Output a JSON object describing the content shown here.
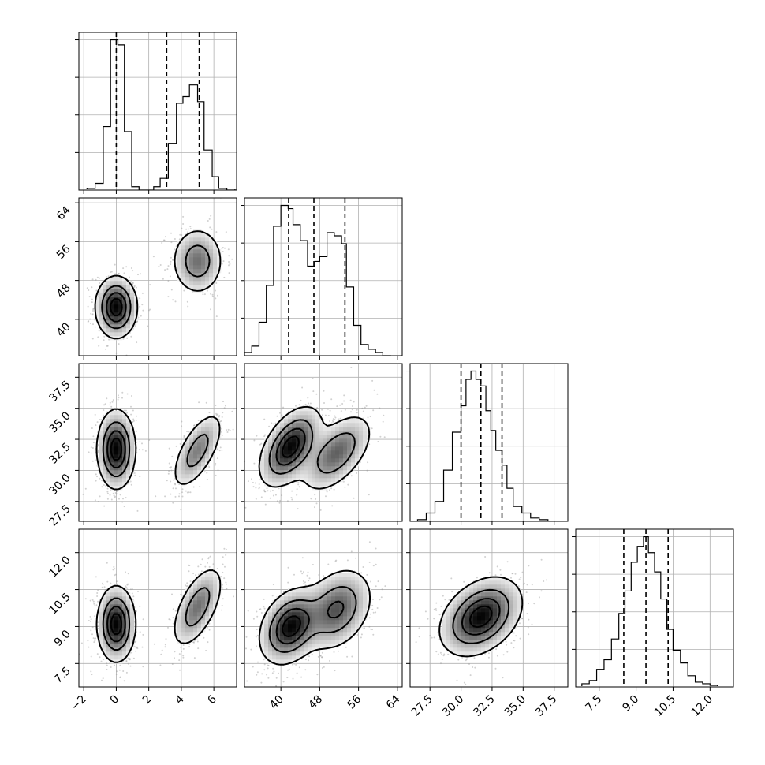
{
  "chart_data": {
    "type": "corner",
    "n_params": 4,
    "grid": true,
    "params": [
      {
        "index": 0,
        "range": [
          -2.3,
          7.4
        ],
        "ticks": [
          -2,
          0,
          2,
          4,
          6
        ],
        "tick_labels": [
          "−2",
          "0",
          "2",
          "4",
          "6"
        ],
        "quantiles": [
          0.0,
          3.1,
          5.1
        ],
        "hist": {
          "edges": [
            -1.8,
            -1.3,
            -0.8,
            -0.35,
            0.1,
            0.5,
            0.95,
            1.4,
            1.8,
            2.3,
            2.7,
            3.2,
            3.7,
            4.1,
            4.5,
            5.0,
            5.4,
            5.9,
            6.3,
            6.8,
            7.3
          ],
          "counts": [
            0.01,
            0.04,
            0.38,
            0.9,
            0.87,
            0.35,
            0.02,
            0.0,
            0.0,
            0.02,
            0.07,
            0.28,
            0.52,
            0.56,
            0.63,
            0.53,
            0.24,
            0.08,
            0.01,
            0.0
          ]
        }
      },
      {
        "index": 1,
        "range": [
          32.5,
          65.0
        ],
        "ticks": [
          40,
          48,
          56,
          64
        ],
        "tick_labels": [
          "40",
          "48",
          "56",
          "64"
        ],
        "quantiles": [
          41.6,
          46.8,
          53.2
        ],
        "hist": {
          "edges": [
            32.5,
            34.0,
            35.5,
            37.0,
            38.5,
            40.0,
            41.5,
            42.5,
            44.0,
            45.5,
            47.0,
            48.0,
            49.5,
            51.0,
            52.5,
            53.5,
            55.0,
            56.5,
            58.0,
            59.5,
            61.0,
            62.5
          ],
          "counts": [
            0.02,
            0.06,
            0.21,
            0.44,
            0.81,
            0.94,
            0.92,
            0.82,
            0.72,
            0.56,
            0.59,
            0.62,
            0.77,
            0.75,
            0.7,
            0.43,
            0.19,
            0.07,
            0.04,
            0.02,
            0.0
          ]
        }
      },
      {
        "index": 2,
        "range": [
          25.9,
          38.6
        ],
        "ticks": [
          27.5,
          30.0,
          32.5,
          35.0,
          37.5
        ],
        "tick_labels": [
          "27.5",
          "30.0",
          "32.5",
          "35.0",
          "37.5"
        ],
        "quantiles": [
          30.0,
          31.6,
          33.3
        ],
        "hist": {
          "edges": [
            26.5,
            27.2,
            27.9,
            28.6,
            29.3,
            30.0,
            30.4,
            30.8,
            31.2,
            31.6,
            32.0,
            32.4,
            32.8,
            33.3,
            33.7,
            34.2,
            34.9,
            35.6,
            36.3,
            37.0,
            37.7
          ],
          "counts": [
            0.01,
            0.05,
            0.12,
            0.31,
            0.54,
            0.7,
            0.86,
            0.91,
            0.86,
            0.82,
            0.67,
            0.55,
            0.43,
            0.34,
            0.2,
            0.09,
            0.05,
            0.02,
            0.01,
            0.0
          ]
        }
      },
      {
        "index": 3,
        "range": [
          6.55,
          12.95
        ],
        "ticks": [
          7.5,
          9.0,
          10.5,
          12.0
        ],
        "tick_labels": [
          "7.5",
          "9.0",
          "10.5",
          "12.0"
        ],
        "quantiles": [
          8.5,
          9.4,
          10.3
        ],
        "hist": {
          "edges": [
            6.8,
            7.1,
            7.4,
            7.7,
            8.0,
            8.3,
            8.55,
            8.8,
            9.05,
            9.3,
            9.5,
            9.75,
            10.0,
            10.25,
            10.5,
            10.8,
            11.1,
            11.4,
            11.7,
            12.0,
            12.3
          ],
          "counts": [
            0.02,
            0.04,
            0.11,
            0.17,
            0.3,
            0.46,
            0.6,
            0.78,
            0.88,
            0.94,
            0.84,
            0.72,
            0.55,
            0.36,
            0.23,
            0.15,
            0.07,
            0.03,
            0.02,
            0.01
          ]
        }
      }
    ],
    "pairs": [
      {
        "row": 1,
        "col": 0,
        "modes": [
          {
            "center": [
              0.0,
              42.5
            ],
            "sd": [
              0.6,
              3.0
            ],
            "rho": 0.0,
            "weight": 1.0
          },
          {
            "center": [
              5.0,
              52.0
            ],
            "sd": [
              0.75,
              3.3
            ],
            "rho": 0.0,
            "weight": 0.55
          }
        ]
      },
      {
        "row": 2,
        "col": 0,
        "modes": [
          {
            "center": [
              0.0,
              31.7
            ],
            "sd": [
              0.55,
              1.5
            ],
            "rho": 0.0,
            "weight": 1.0
          },
          {
            "center": [
              5.0,
              31.6
            ],
            "sd": [
              0.75,
              1.5
            ],
            "rho": 0.65,
            "weight": 0.5
          }
        ]
      },
      {
        "row": 2,
        "col": 1,
        "modes": [
          {
            "center": [
              42.0,
              31.9
            ],
            "sd": [
              3.0,
              1.5
            ],
            "rho": 0.5,
            "weight": 1.0
          },
          {
            "center": [
              51.5,
              31.4
            ],
            "sd": [
              3.5,
              1.5
            ],
            "rho": 0.55,
            "weight": 0.62
          }
        ]
      },
      {
        "row": 3,
        "col": 0,
        "modes": [
          {
            "center": [
              0.0,
              9.1
            ],
            "sd": [
              0.55,
              0.72
            ],
            "rho": 0.0,
            "weight": 1.0
          },
          {
            "center": [
              5.0,
              9.8
            ],
            "sd": [
              0.75,
              0.8
            ],
            "rho": 0.6,
            "weight": 0.55
          }
        ]
      },
      {
        "row": 3,
        "col": 1,
        "modes": [
          {
            "center": [
              42.0,
              9.0
            ],
            "sd": [
              3.0,
              0.72
            ],
            "rho": 0.3,
            "weight": 1.0
          },
          {
            "center": [
              51.5,
              9.7
            ],
            "sd": [
              3.5,
              0.8
            ],
            "rho": 0.3,
            "weight": 0.68
          }
        ]
      },
      {
        "row": 3,
        "col": 2,
        "modes": [
          {
            "center": [
              31.6,
              9.4
            ],
            "sd": [
              1.55,
              0.75
            ],
            "rho": 0.35,
            "weight": 1.0
          }
        ]
      }
    ]
  }
}
